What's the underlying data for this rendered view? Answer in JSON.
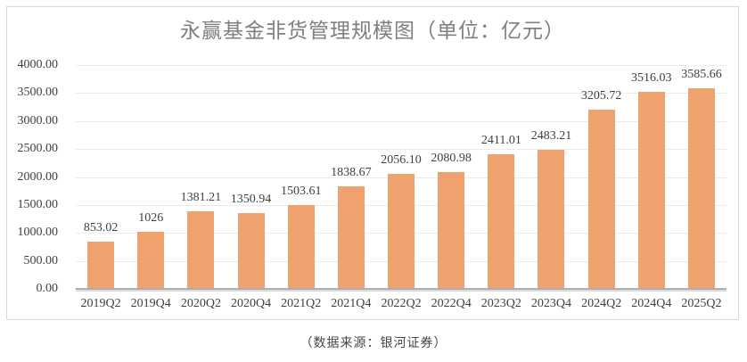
{
  "chart": {
    "title": "永赢基金非货管理规模图（单位：亿元）",
    "source_note": "（数据来源：银河证券）",
    "colors": {
      "bar": "#F0A26E",
      "gridline": "#ECECEC",
      "axis_line": "#AFAFAF",
      "axis_shadow": "#DBDBDB",
      "title_text": "#7F7F7F",
      "label_text": "#3F3F3F",
      "card_border": "#D9D9D9"
    }
  },
  "chart_data": {
    "type": "bar",
    "title": "永赢基金非货管理规模图（单位：亿元）",
    "categories": [
      "2019Q2",
      "2019Q4",
      "2020Q2",
      "2020Q4",
      "2021Q2",
      "2021Q4",
      "2022Q2",
      "2022Q4",
      "2023Q2",
      "2023Q4",
      "2024Q2",
      "2024Q4",
      "2025Q2"
    ],
    "values": [
      853.02,
      1026,
      1381.21,
      1350.94,
      1503.61,
      1838.67,
      2056.1,
      2080.98,
      2411.01,
      2483.21,
      3205.72,
      3516.03,
      3585.66
    ],
    "value_labels": [
      "853.02",
      "1026",
      "1381.21",
      "1350.94",
      "1503.61",
      "1838.67",
      "2056.10",
      "2080.98",
      "2411.01",
      "2483.21",
      "3205.72",
      "3516.03",
      "3585.66"
    ],
    "xlabel": "",
    "ylabel": "",
    "ylim": [
      0,
      4000
    ],
    "y_tick_step": 500,
    "y_tick_labels": [
      "4000.00",
      "3500.00",
      "3000.00",
      "2500.00",
      "2000.00",
      "1500.00",
      "1000.00",
      "500.00",
      "0.00"
    ],
    "grid": true,
    "legend": false,
    "bar_color": "#F0A26E"
  }
}
